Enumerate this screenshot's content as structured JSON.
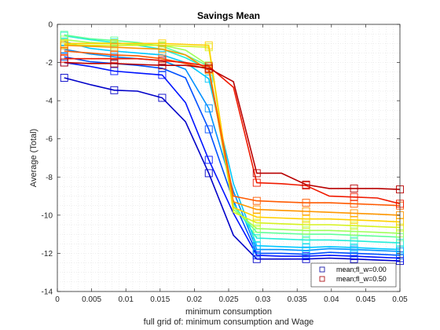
{
  "chart_data": {
    "type": "line",
    "title": "Savings Mean",
    "xlabel": "minimum consumption",
    "xlabel2": "full grid of: minimum consumption and Wage",
    "ylabel": "Average (Total)",
    "xlim": [
      0,
      0.05
    ],
    "ylim": [
      -14,
      0
    ],
    "xticks": [
      "0",
      "0.005",
      "0.01",
      "0.015",
      "0.02",
      "0.025",
      "0.03",
      "0.035",
      "0.04",
      "0.045",
      "0.05"
    ],
    "yticks": [
      "0",
      "-2",
      "-4",
      "-6",
      "-8",
      "-10",
      "-12",
      "-14"
    ],
    "grid": "minor dotted",
    "legend_position": "bottom-right",
    "legend": [
      {
        "label": "mean;fl_w=0.00",
        "color": "#1a1aa8"
      },
      {
        "label": "mean;fl_w=0.50",
        "color": "#b0161a"
      }
    ],
    "x": [
      0.001,
      0.0047,
      0.0083,
      0.0117,
      0.0153,
      0.0187,
      0.0221,
      0.0257,
      0.0291,
      0.0327,
      0.0363,
      0.0397,
      0.0433,
      0.0467,
      0.05
    ],
    "series": [
      {
        "color": "#0000c8",
        "values": [
          -2.8,
          -3.15,
          -3.45,
          -3.5,
          -3.85,
          -5.1,
          -7.8,
          -11.05,
          -12.3,
          -12.3,
          -12.3,
          -12.25,
          -12.3,
          -12.35,
          -12.4
        ]
      },
      {
        "color": "#0014ff",
        "values": [
          -2.0,
          -2.2,
          -2.45,
          -2.55,
          -2.65,
          -4.1,
          -7.1,
          -9.9,
          -12.1,
          -12.15,
          -12.15,
          -12.1,
          -12.15,
          -12.2,
          -12.25
        ]
      },
      {
        "color": "#0050ff",
        "values": [
          -1.7,
          -1.95,
          -2.05,
          -2.15,
          -2.3,
          -2.8,
          -5.5,
          -9.25,
          -12.0,
          -12.0,
          -12.05,
          -11.95,
          -12.0,
          -12.05,
          -12.1
        ]
      },
      {
        "color": "#0090ff",
        "values": [
          -1.3,
          -1.55,
          -1.7,
          -1.8,
          -1.9,
          -2.35,
          -4.4,
          -8.75,
          -11.8,
          -11.8,
          -11.85,
          -11.75,
          -11.8,
          -11.85,
          -11.9
        ]
      },
      {
        "color": "#00c8ff",
        "values": [
          -0.9,
          -1.25,
          -1.4,
          -1.5,
          -1.6,
          -2.0,
          -2.85,
          -8.35,
          -11.6,
          -11.65,
          -11.7,
          -11.65,
          -11.7,
          -11.75,
          -11.8
        ]
      },
      {
        "color": "#22ecd8",
        "values": [
          -0.6,
          -0.8,
          -0.95,
          -1.1,
          -1.3,
          -1.75,
          -2.35,
          -9.4,
          -11.2,
          -11.25,
          -11.3,
          -11.3,
          -11.35,
          -11.4,
          -11.45
        ]
      },
      {
        "color": "#60ff9a",
        "values": [
          -0.55,
          -0.75,
          -0.85,
          -0.95,
          -1.15,
          -1.6,
          -2.2,
          -9.55,
          -10.9,
          -10.95,
          -11.0,
          -11.0,
          -11.05,
          -11.1,
          -11.15
        ]
      },
      {
        "color": "#a0ff5a",
        "values": [
          -0.8,
          -0.95,
          -1.0,
          -1.05,
          -1.1,
          -1.35,
          -2.15,
          -9.7,
          -10.7,
          -10.75,
          -10.8,
          -10.8,
          -10.85,
          -10.9,
          -10.95
        ]
      },
      {
        "color": "#d6f21e",
        "values": [
          -1.05,
          -1.1,
          -1.1,
          -1.1,
          -1.1,
          -1.15,
          -1.2,
          -9.85,
          -10.4,
          -10.45,
          -10.5,
          -10.5,
          -10.55,
          -10.6,
          -10.65
        ]
      },
      {
        "color": "#ffd000",
        "values": [
          -1.0,
          -1.0,
          -1.0,
          -1.0,
          -1.0,
          -1.05,
          -1.1,
          -9.6,
          -10.1,
          -10.15,
          -10.2,
          -10.2,
          -10.25,
          -10.3,
          -10.35
        ]
      },
      {
        "color": "#ff9600",
        "values": [
          -1.1,
          -1.15,
          -1.2,
          -1.25,
          -1.3,
          -1.6,
          -2.4,
          -9.3,
          -9.7,
          -9.75,
          -9.8,
          -9.85,
          -9.9,
          -9.95,
          -10.0
        ]
      },
      {
        "color": "#ff5a00",
        "values": [
          -1.4,
          -1.5,
          -1.6,
          -1.65,
          -1.8,
          -2.05,
          -2.35,
          -9.0,
          -9.25,
          -9.3,
          -9.35,
          -9.35,
          -9.4,
          -9.45,
          -9.5
        ]
      },
      {
        "color": "#f01a00",
        "values": [
          -1.8,
          -1.8,
          -1.8,
          -1.8,
          -1.9,
          -2.0,
          -2.2,
          -3.3,
          -8.3,
          -8.35,
          -8.45,
          -9.0,
          -9.05,
          -9.1,
          -9.4
        ]
      },
      {
        "color": "#b80000",
        "values": [
          -2.0,
          -2.05,
          -2.05,
          -2.1,
          -2.15,
          -2.15,
          -2.3,
          -3.0,
          -7.8,
          -7.8,
          -8.4,
          -8.6,
          -8.6,
          -8.6,
          -8.65
        ]
      }
    ]
  }
}
